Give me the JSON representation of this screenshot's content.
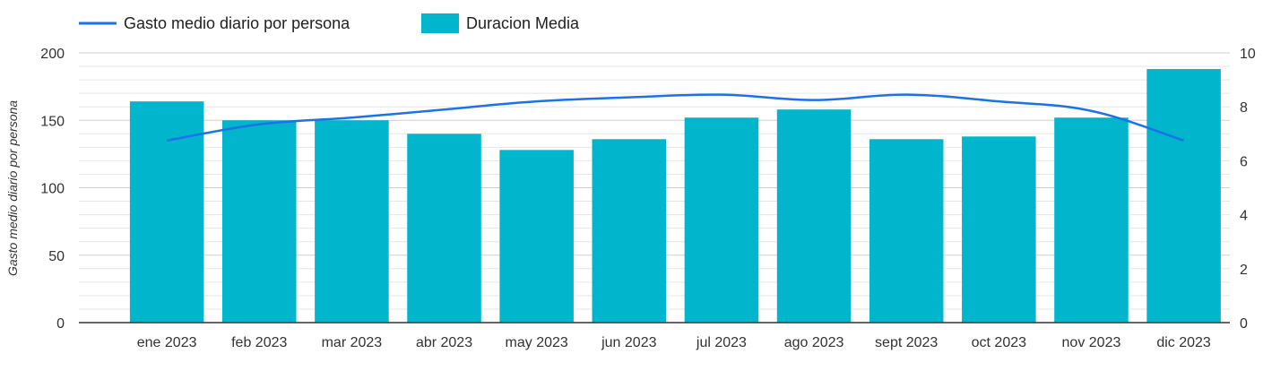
{
  "chart_data": {
    "type": "bar",
    "categories": [
      "ene 2023",
      "feb 2023",
      "mar 2023",
      "abr 2023",
      "may 2023",
      "jun 2023",
      "jul 2023",
      "ago 2023",
      "sept 2023",
      "oct 2023",
      "nov 2023",
      "dic 2023"
    ],
    "series": [
      {
        "name": "Gasto medio diario por persona",
        "type": "line",
        "axis": "left",
        "color": "#1a73e8",
        "values": [
          135,
          147,
          152,
          158,
          164,
          167,
          169,
          165,
          169,
          164,
          157,
          135
        ]
      },
      {
        "name": "Duracion Media",
        "type": "bar",
        "axis": "right",
        "color": "#00b5cc",
        "values": [
          8.2,
          7.5,
          7.5,
          7.0,
          6.4,
          6.8,
          7.6,
          7.9,
          6.8,
          6.9,
          7.6,
          9.4
        ]
      }
    ],
    "ylabel": "Gasto medio diario por persona",
    "ylim": [
      0,
      200
    ],
    "yticks": [
      "0",
      "50",
      "100",
      "150",
      "200"
    ],
    "y2lim": [
      0,
      10
    ],
    "y2ticks": [
      "0",
      "2",
      "4",
      "6",
      "8",
      "10"
    ],
    "legend_position": "top-left",
    "grid": true
  }
}
